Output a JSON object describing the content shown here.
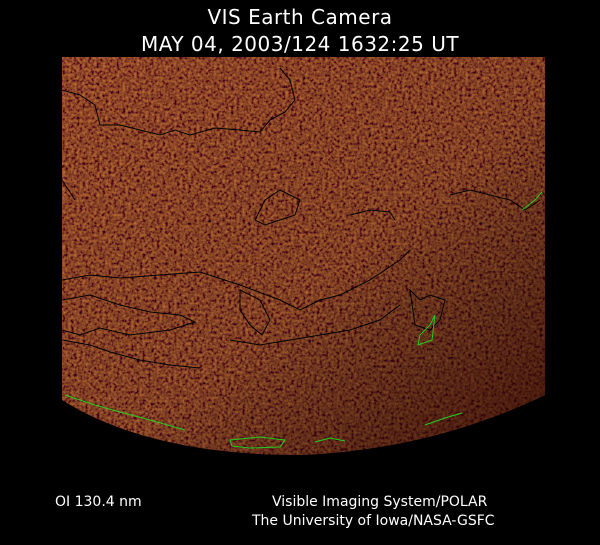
{
  "title": {
    "line1": "VIS Earth Camera",
    "line2": "MAY 04, 2003/124 1632:25 UT"
  },
  "image": {
    "description_colors": {
      "background": "#000000",
      "glow": "#a33a10",
      "dark": "#3a0600",
      "coastline": "#000000",
      "coastline_edge": "#22cc22"
    }
  },
  "footer": {
    "filter": "OI  130.4 nm",
    "instrument": "Visible Imaging System/POLAR",
    "institution": "The University of Iowa/NASA-GSFC"
  }
}
